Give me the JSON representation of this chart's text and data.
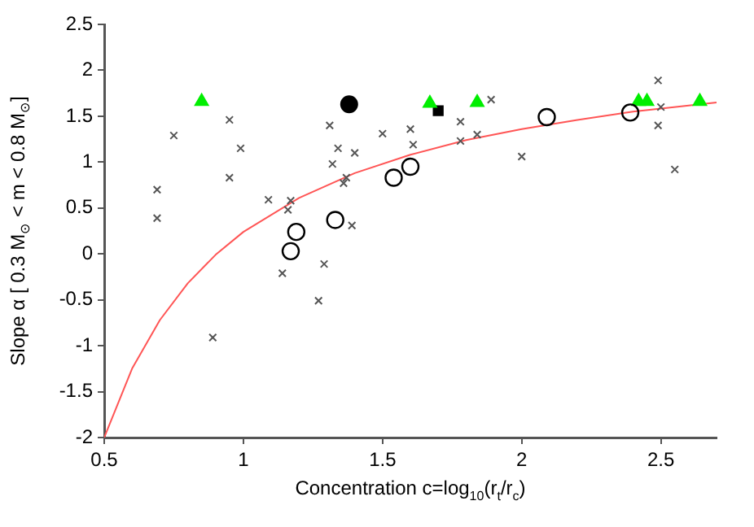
{
  "chart_data": {
    "type": "scatter",
    "xlabel": "Concentration c=log$_{10}$(r$_{t}$/r$_{c}$)",
    "ylabel": "Slope α [ 0.3 M$_{⊙}$ < m < 0.8 M$_{⊙}$]",
    "xlim": [
      0.5,
      2.7
    ],
    "xticks": [
      0.5,
      1,
      1.5,
      2,
      2.5
    ],
    "ylim": [
      -2,
      2.5
    ],
    "yticks": [
      -2,
      -1.5,
      -1,
      -0.5,
      0,
      0.5,
      1,
      1.5,
      2,
      2.5
    ],
    "grid": false,
    "legend": false,
    "series": [
      {
        "marker": "cross",
        "color": "#555555",
        "x": [
          0.69,
          0.69,
          0.75,
          0.95,
          0.99,
          0.95,
          0.89,
          1.09,
          1.17,
          1.16,
          1.14,
          1.29,
          1.27,
          1.31,
          1.34,
          1.32,
          1.37,
          1.36,
          1.39,
          1.4,
          1.5,
          1.6,
          1.61,
          1.78,
          1.78,
          1.84,
          1.89,
          2.0,
          2.49,
          2.5,
          2.49,
          2.55
        ],
        "values": [
          0.7,
          0.39,
          1.29,
          1.46,
          1.15,
          0.83,
          -0.91,
          0.59,
          0.58,
          0.48,
          -0.21,
          -0.11,
          -0.51,
          1.4,
          1.15,
          0.98,
          0.83,
          0.77,
          0.31,
          1.1,
          1.31,
          1.36,
          1.19,
          1.44,
          1.23,
          1.3,
          1.68,
          1.06,
          1.89,
          1.6,
          1.4,
          0.92
        ]
      },
      {
        "marker": "circle",
        "color": "#000000",
        "x": [
          1.19,
          1.17,
          1.33,
          1.54,
          1.6,
          2.09,
          2.39
        ],
        "values": [
          0.24,
          0.03,
          0.37,
          0.83,
          0.95,
          1.49,
          1.54
        ]
      },
      {
        "marker": "triangle",
        "color": "#00ee00",
        "x": [
          0.85,
          1.67,
          1.84,
          2.42,
          2.45,
          2.64
        ],
        "values": [
          1.66,
          1.64,
          1.65,
          1.66,
          1.66,
          1.66
        ]
      },
      {
        "marker": "circle",
        "color": "#000000",
        "x": [
          1.38
        ],
        "values": [
          1.63
        ]
      },
      {
        "marker": "square",
        "color": "#000000",
        "x": [
          1.7
        ],
        "values": [
          1.56
        ]
      },
      {
        "type": "line",
        "marker": "none",
        "color": "#ff5555",
        "x": [
          0.5,
          0.6,
          0.7,
          0.8,
          0.9,
          1.0,
          1.2,
          1.4,
          1.6,
          1.8,
          2.0,
          2.2,
          2.4,
          2.7
        ],
        "values": [
          -2,
          -1.25,
          -0.72,
          -0.32,
          -0.01,
          0.24,
          0.61,
          0.88,
          1.08,
          1.24,
          1.36,
          1.46,
          1.55,
          1.65
        ]
      }
    ]
  }
}
